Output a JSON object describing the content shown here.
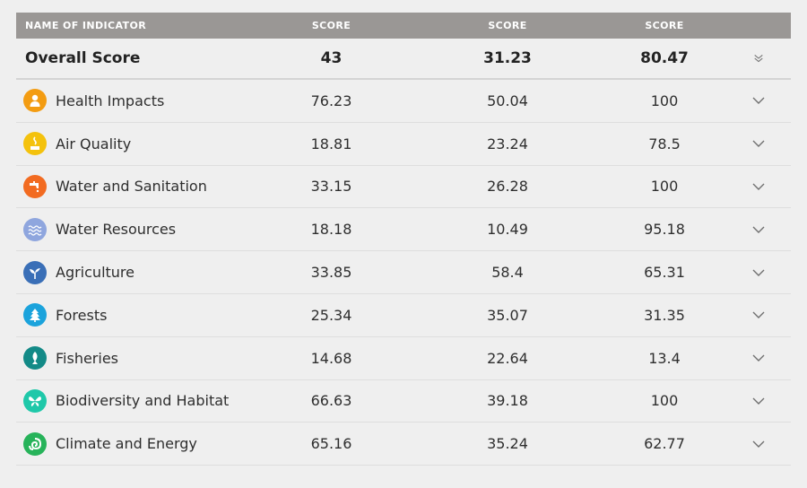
{
  "header": {
    "name_col": "NAME OF INDICATOR",
    "score_col_1": "SCORE",
    "score_col_2": "SCORE",
    "score_col_3": "SCORE"
  },
  "overall": {
    "label": "Overall Score",
    "scores": [
      "43",
      "31.23",
      "80.47"
    ]
  },
  "indicators": [
    {
      "label": "Health Impacts",
      "icon": "person-icon",
      "color": "#f39c12",
      "scores": [
        "76.23",
        "50.04",
        "100"
      ]
    },
    {
      "label": "Air Quality",
      "icon": "smoke-icon",
      "color": "#f4c20d",
      "scores": [
        "18.81",
        "23.24",
        "78.5"
      ]
    },
    {
      "label": "Water and Sanitation",
      "icon": "faucet-icon",
      "color": "#f26b21",
      "scores": [
        "33.15",
        "26.28",
        "100"
      ]
    },
    {
      "label": "Water Resources",
      "icon": "waves-icon",
      "color": "#8fa6de",
      "scores": [
        "18.18",
        "10.49",
        "95.18"
      ]
    },
    {
      "label": "Agriculture",
      "icon": "sprout-icon",
      "color": "#3a6fb7",
      "scores": [
        "33.85",
        "58.4",
        "65.31"
      ]
    },
    {
      "label": "Forests",
      "icon": "tree-icon",
      "color": "#1ba3dc",
      "scores": [
        "25.34",
        "35.07",
        "31.35"
      ]
    },
    {
      "label": "Fisheries",
      "icon": "fish-icon",
      "color": "#138a87",
      "scores": [
        "14.68",
        "22.64",
        "13.4"
      ]
    },
    {
      "label": "Biodiversity and Habitat",
      "icon": "butterfly-icon",
      "color": "#1fc8a9",
      "scores": [
        "66.63",
        "39.18",
        "100"
      ]
    },
    {
      "label": "Climate and Energy",
      "icon": "swirl-icon",
      "color": "#27b35a",
      "scores": [
        "65.16",
        "35.24",
        "62.77"
      ]
    }
  ]
}
